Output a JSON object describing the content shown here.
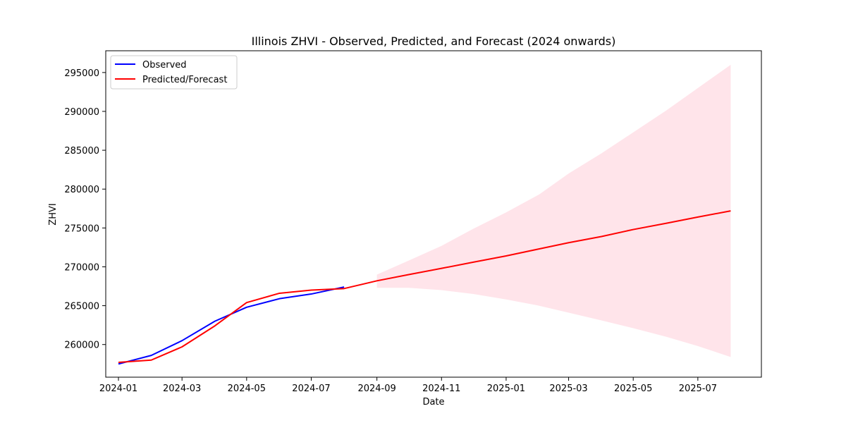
{
  "chart_data": {
    "type": "line",
    "title": "Illinois ZHVI - Observed, Predicted, and Forecast (2024 onwards)",
    "xlabel": "Date",
    "ylabel": "ZHVI",
    "xlim": [
      "2023-12-20",
      "2025-08-30"
    ],
    "ylim": [
      255800,
      297800
    ],
    "xticks": [
      "2024-01",
      "2024-03",
      "2024-05",
      "2024-07",
      "2024-09",
      "2024-11",
      "2025-01",
      "2025-03",
      "2025-05",
      "2025-07"
    ],
    "yticks": [
      260000,
      265000,
      270000,
      275000,
      280000,
      285000,
      290000,
      295000
    ],
    "ytick_labels": [
      "260000",
      "265000",
      "270000",
      "275000",
      "280000",
      "285000",
      "290000",
      "295000"
    ],
    "legend_position": "top-left",
    "grid": false,
    "series": [
      {
        "name": "Observed",
        "color": "#0000ff",
        "x": [
          "2024-01-01",
          "2024-02-01",
          "2024-03-01",
          "2024-04-01",
          "2024-05-01",
          "2024-06-01",
          "2024-07-01",
          "2024-08-01"
        ],
        "values": [
          257500,
          258600,
          260500,
          263000,
          264800,
          265900,
          266500,
          267400
        ]
      },
      {
        "name": "Predicted/Forecast",
        "color": "#ff0000",
        "x": [
          "2024-01-01",
          "2024-02-01",
          "2024-03-01",
          "2024-04-01",
          "2024-05-01",
          "2024-06-01",
          "2024-07-01",
          "2024-08-01",
          "2024-09-01",
          "2024-10-01",
          "2024-11-01",
          "2024-12-01",
          "2025-01-01",
          "2025-02-01",
          "2025-03-01",
          "2025-04-01",
          "2025-05-01",
          "2025-06-01",
          "2025-07-01",
          "2025-08-01"
        ],
        "values": [
          257700,
          258000,
          259700,
          262400,
          265400,
          266600,
          267000,
          267200,
          268200,
          269000,
          269800,
          270600,
          271400,
          272300,
          273100,
          273900,
          274800,
          275600,
          276400,
          277200
        ]
      }
    ],
    "confidence_band": {
      "color": "#ffe4ea",
      "x": [
        "2024-09-01",
        "2024-10-01",
        "2024-11-01",
        "2024-12-01",
        "2025-01-01",
        "2025-02-01",
        "2025-03-01",
        "2025-04-01",
        "2025-05-01",
        "2025-06-01",
        "2025-07-01",
        "2025-08-01"
      ],
      "lower": [
        267300,
        267300,
        267000,
        266500,
        265800,
        265000,
        264100,
        263100,
        262100,
        261000,
        259800,
        258400
      ],
      "upper": [
        269000,
        270800,
        272700,
        274900,
        277000,
        279300,
        282000,
        284600,
        287300,
        290100,
        293000,
        296000
      ]
    }
  }
}
